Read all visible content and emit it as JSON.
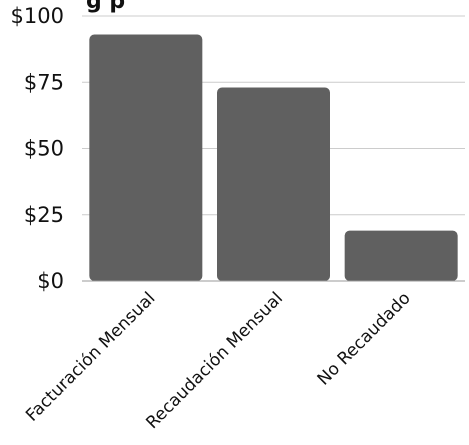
{
  "chart_data": {
    "type": "bar",
    "title_fragment": "g p",
    "categories": [
      "Facturación Mensual",
      "Recaudación Mensual",
      "No Recaudado"
    ],
    "values": [
      93,
      73,
      19
    ],
    "ylim": [
      0,
      100
    ],
    "yticks": [
      0,
      25,
      50,
      75,
      100
    ],
    "ytick_labels": [
      "$0",
      "$25",
      "$50",
      "$75",
      "$100"
    ],
    "xlabel": "",
    "ylabel": "",
    "grid": true,
    "legend": "none",
    "colors": {
      "bar": "#606060",
      "grid": "#cccccc",
      "axis": "#999999",
      "text": "#111111"
    }
  }
}
